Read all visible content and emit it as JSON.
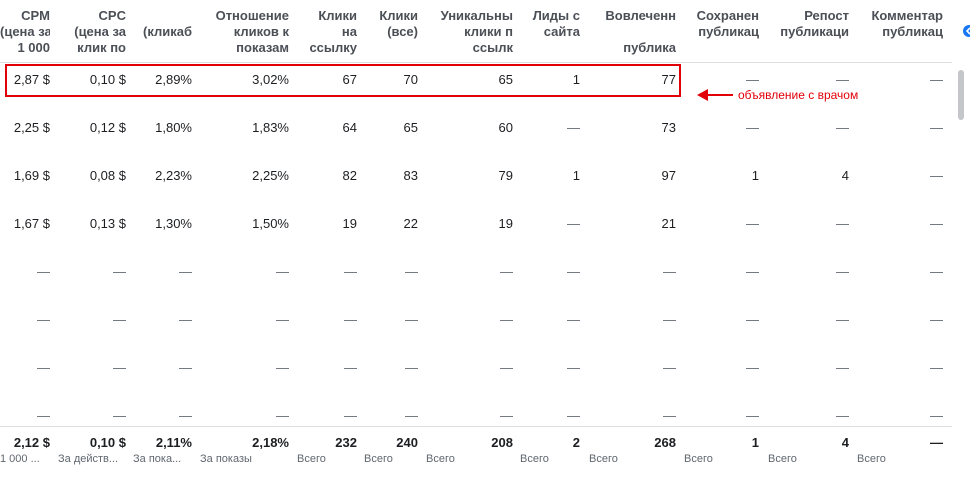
{
  "columns": [
    {
      "id": "cpm",
      "lines": [
        "CPM",
        "(цена за",
        "1 000"
      ]
    },
    {
      "id": "cpc",
      "lines": [
        "CPC",
        "(цена за",
        "клик по"
      ]
    },
    {
      "id": "ctr",
      "lines": [
        "",
        "(кликаб"
      ]
    },
    {
      "id": "ratio",
      "lines": [
        "Отношение",
        "кликов к",
        "показам"
      ]
    },
    {
      "id": "link_clicks",
      "lines": [
        "Клики",
        "на",
        "ссылку"
      ]
    },
    {
      "id": "clicks_all",
      "lines": [
        "Клики",
        "(все)"
      ]
    },
    {
      "id": "unique_link_clicks",
      "lines": [
        "Уникальны",
        "клики п",
        "ссылк"
      ]
    },
    {
      "id": "site_leads",
      "lines": [
        "Лиды с",
        "сайта"
      ]
    },
    {
      "id": "engagement",
      "lines": [
        "Вовлеченн",
        "",
        "публика"
      ]
    },
    {
      "id": "saves",
      "lines": [
        "Сохранен",
        "публикац"
      ]
    },
    {
      "id": "shares",
      "lines": [
        "Репост",
        "публикаци"
      ]
    },
    {
      "id": "comments",
      "lines": [
        "Комментар",
        "публикац"
      ]
    }
  ],
  "rows": [
    [
      "2,87 $",
      "0,10 $",
      "2,89%",
      "3,02%",
      "67",
      "70",
      "65",
      "1",
      "77",
      "—",
      "—",
      "—"
    ],
    [
      "2,25 $",
      "0,12 $",
      "1,80%",
      "1,83%",
      "64",
      "65",
      "60",
      "—",
      "73",
      "—",
      "—",
      "—"
    ],
    [
      "1,69 $",
      "0,08 $",
      "2,23%",
      "2,25%",
      "82",
      "83",
      "79",
      "1",
      "97",
      "1",
      "4",
      "—"
    ],
    [
      "1,67 $",
      "0,13 $",
      "1,30%",
      "1,50%",
      "19",
      "22",
      "19",
      "—",
      "21",
      "—",
      "—",
      "—"
    ],
    [
      "—",
      "—",
      "—",
      "—",
      "—",
      "—",
      "—",
      "—",
      "—",
      "—",
      "—",
      "—"
    ],
    [
      "—",
      "—",
      "—",
      "—",
      "—",
      "—",
      "—",
      "—",
      "—",
      "—",
      "—",
      "—"
    ],
    [
      "—",
      "—",
      "—",
      "—",
      "—",
      "—",
      "—",
      "—",
      "—",
      "—",
      "—",
      "—"
    ],
    [
      "—",
      "—",
      "—",
      "—",
      "—",
      "—",
      "—",
      "—",
      "—",
      "—",
      "—",
      "—"
    ]
  ],
  "totals": {
    "values": [
      "2,12 $",
      "0,10 $",
      "2,11%",
      "2,18%",
      "232",
      "240",
      "208",
      "2",
      "268",
      "1",
      "4",
      "—"
    ],
    "labels": [
      "1 000 ...",
      "За действ...",
      "За пока...",
      "За показы",
      "Всего",
      "Всего",
      "Всего",
      "Всего",
      "Всего",
      "Всего",
      "Всего",
      "Всего",
      ""
    ]
  },
  "annotation": {
    "text": "объявление с врачом",
    "color": "#e10008"
  },
  "icons": {
    "nav": "chevron-left-icon",
    "annotation_arrow": "arrow-left-icon"
  }
}
